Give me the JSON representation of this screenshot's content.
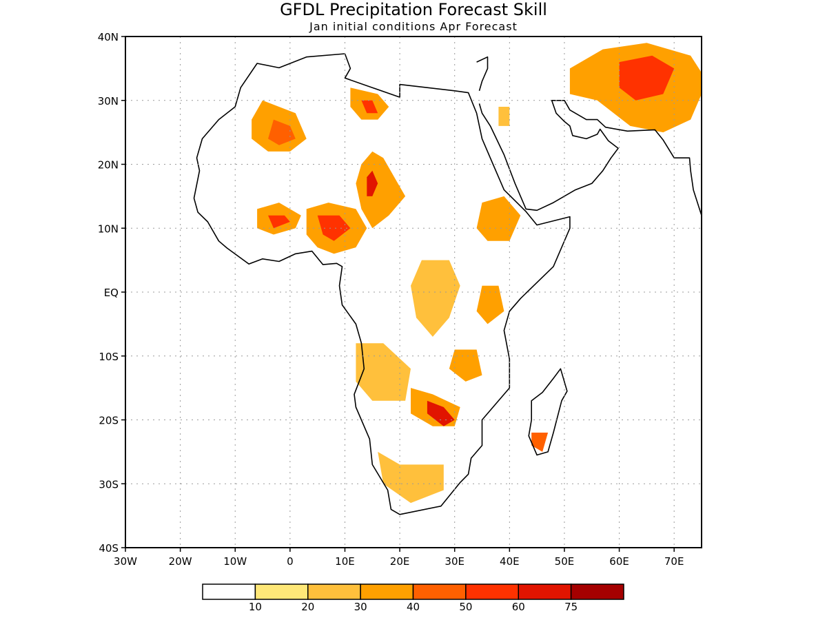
{
  "title": "GFDL Precipitation Forecast Skill",
  "subtitle": "Jan initial conditions  Apr Forecast",
  "map": {
    "region": "Africa",
    "lon_range": [
      -30,
      75
    ],
    "lat_range": [
      -40,
      40
    ],
    "grid": "dotted",
    "lon_ticks": [
      "30W",
      "20W",
      "10W",
      "0",
      "10E",
      "20E",
      "30E",
      "40E",
      "50E",
      "60E",
      "70E"
    ],
    "lat_ticks": [
      "40N",
      "30N",
      "20N",
      "10N",
      "EQ",
      "10S",
      "20S",
      "30S",
      "40S"
    ]
  },
  "colorbar": {
    "boundaries": [
      "10",
      "20",
      "30",
      "40",
      "50",
      "60",
      "75"
    ],
    "colors": [
      "#ffffff",
      "#ffe878",
      "#ffc03c",
      "#ffa000",
      "#ff6000",
      "#ff3200",
      "#e11400",
      "#a50000"
    ]
  },
  "skill_regions": [
    {
      "name": "north-africa-west",
      "level": 3,
      "pts": [
        [
          -5,
          30
        ],
        [
          -2,
          29
        ],
        [
          1,
          28
        ],
        [
          3,
          24
        ],
        [
          0,
          22
        ],
        [
          -4,
          22
        ],
        [
          -7,
          24
        ],
        [
          -7,
          27
        ]
      ]
    },
    {
      "name": "north-africa-west-core",
      "level": 4,
      "pts": [
        [
          -3,
          27
        ],
        [
          0,
          26
        ],
        [
          1,
          24
        ],
        [
          -2,
          23
        ],
        [
          -4,
          24
        ]
      ]
    },
    {
      "name": "libya",
      "level": 3,
      "pts": [
        [
          11,
          32
        ],
        [
          16,
          31
        ],
        [
          18,
          29
        ],
        [
          16,
          27
        ],
        [
          13,
          27
        ],
        [
          11,
          29
        ]
      ]
    },
    {
      "name": "libya-core",
      "level": 5,
      "pts": [
        [
          13,
          30
        ],
        [
          15,
          30
        ],
        [
          16,
          28
        ],
        [
          14,
          28
        ]
      ]
    },
    {
      "name": "sahel-central",
      "level": 3,
      "pts": [
        [
          13,
          20
        ],
        [
          15,
          22
        ],
        [
          17,
          21
        ],
        [
          19,
          18
        ],
        [
          21,
          15
        ],
        [
          18,
          12
        ],
        [
          15,
          10
        ],
        [
          13,
          13
        ],
        [
          12,
          17
        ]
      ]
    },
    {
      "name": "sahel-central-core",
      "level": 6,
      "pts": [
        [
          14,
          18
        ],
        [
          15,
          19
        ],
        [
          16,
          17
        ],
        [
          15,
          15
        ],
        [
          14,
          15
        ]
      ]
    },
    {
      "name": "nigeria",
      "level": 3,
      "pts": [
        [
          3,
          13
        ],
        [
          7,
          14
        ],
        [
          12,
          13
        ],
        [
          14,
          10
        ],
        [
          12,
          7
        ],
        [
          8,
          6
        ],
        [
          5,
          7
        ],
        [
          3,
          9
        ]
      ]
    },
    {
      "name": "nigeria-core",
      "level": 5,
      "pts": [
        [
          5,
          12
        ],
        [
          9,
          12
        ],
        [
          11,
          10
        ],
        [
          8,
          8
        ],
        [
          6,
          9
        ]
      ]
    },
    {
      "name": "west-africa",
      "level": 3,
      "pts": [
        [
          -6,
          13
        ],
        [
          -2,
          14
        ],
        [
          2,
          12
        ],
        [
          1,
          10
        ],
        [
          -3,
          9
        ],
        [
          -6,
          10
        ]
      ]
    },
    {
      "name": "west-africa-core",
      "level": 5,
      "pts": [
        [
          -4,
          12
        ],
        [
          -1,
          12
        ],
        [
          0,
          11
        ],
        [
          -3,
          10
        ]
      ]
    },
    {
      "name": "ethiopia",
      "level": 3,
      "pts": [
        [
          35,
          14
        ],
        [
          39,
          15
        ],
        [
          42,
          12
        ],
        [
          40,
          8
        ],
        [
          36,
          8
        ],
        [
          34,
          10
        ]
      ]
    },
    {
      "name": "congo-east",
      "level": 2,
      "pts": [
        [
          24,
          5
        ],
        [
          29,
          5
        ],
        [
          31,
          1
        ],
        [
          29,
          -4
        ],
        [
          26,
          -7
        ],
        [
          23,
          -4
        ],
        [
          22,
          1
        ]
      ]
    },
    {
      "name": "east-africa",
      "level": 3,
      "pts": [
        [
          35,
          1
        ],
        [
          38,
          1
        ],
        [
          39,
          -3
        ],
        [
          36,
          -5
        ],
        [
          34,
          -3
        ]
      ]
    },
    {
      "name": "angola",
      "level": 2,
      "pts": [
        [
          12,
          -8
        ],
        [
          17,
          -8
        ],
        [
          22,
          -12
        ],
        [
          21,
          -17
        ],
        [
          15,
          -17
        ],
        [
          12,
          -14
        ]
      ]
    },
    {
      "name": "zambia-zimbabwe",
      "level": 3,
      "pts": [
        [
          22,
          -15
        ],
        [
          26,
          -16
        ],
        [
          31,
          -18
        ],
        [
          30,
          -21
        ],
        [
          26,
          -21
        ],
        [
          22,
          -19
        ]
      ]
    },
    {
      "name": "zambia-zimbabwe-core",
      "level": 6,
      "pts": [
        [
          25,
          -17
        ],
        [
          28,
          -18
        ],
        [
          30,
          -20
        ],
        [
          28,
          -21
        ],
        [
          25,
          -19
        ]
      ]
    },
    {
      "name": "southern-africa",
      "level": 2,
      "pts": [
        [
          16,
          -25
        ],
        [
          20,
          -27
        ],
        [
          28,
          -27
        ],
        [
          28,
          -31
        ],
        [
          22,
          -33
        ],
        [
          17,
          -30
        ]
      ]
    },
    {
      "name": "mozambique",
      "level": 3,
      "pts": [
        [
          30,
          -9
        ],
        [
          34,
          -9
        ],
        [
          35,
          -13
        ],
        [
          32,
          -14
        ],
        [
          29,
          -12
        ]
      ]
    },
    {
      "name": "madagascar",
      "level": 4,
      "pts": [
        [
          44,
          -22
        ],
        [
          47,
          -22
        ],
        [
          46,
          -25
        ],
        [
          44,
          -24
        ]
      ]
    },
    {
      "name": "iran-afghanistan",
      "level": 3,
      "pts": [
        [
          51,
          35
        ],
        [
          57,
          38
        ],
        [
          65,
          39
        ],
        [
          73,
          37
        ],
        [
          76,
          33
        ],
        [
          73,
          27
        ],
        [
          68,
          25
        ],
        [
          62,
          26
        ],
        [
          56,
          30
        ],
        [
          51,
          31
        ]
      ]
    },
    {
      "name": "iran-afghanistan-core",
      "level": 5,
      "pts": [
        [
          60,
          36
        ],
        [
          66,
          37
        ],
        [
          70,
          35
        ],
        [
          68,
          31
        ],
        [
          63,
          30
        ],
        [
          60,
          32
        ]
      ]
    },
    {
      "name": "arabia",
      "level": 2,
      "pts": [
        [
          38,
          29
        ],
        [
          40,
          29
        ],
        [
          40,
          26
        ],
        [
          38,
          26
        ]
      ]
    }
  ]
}
